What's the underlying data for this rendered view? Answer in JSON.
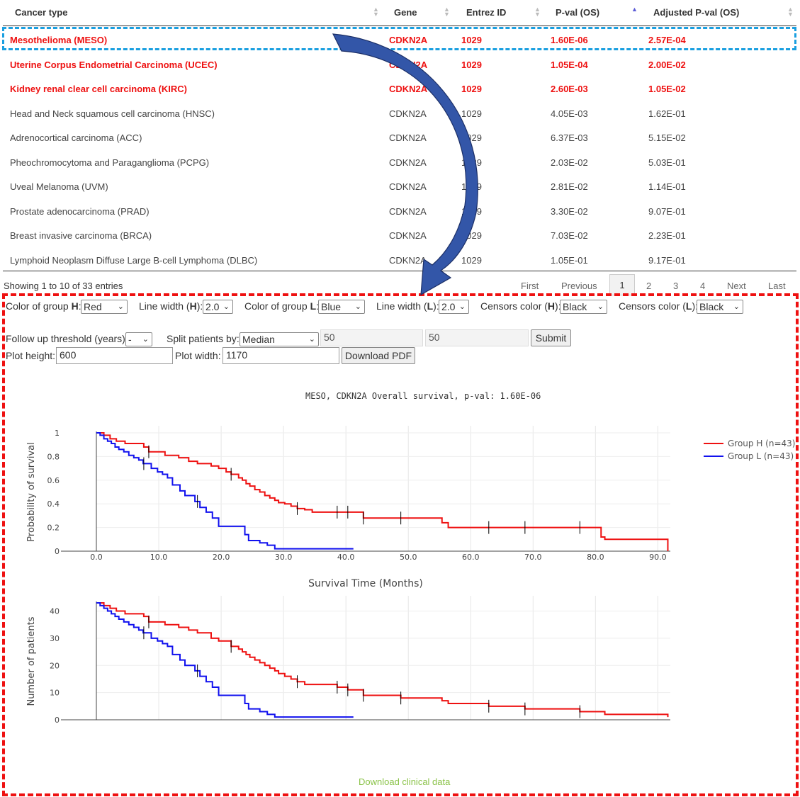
{
  "table": {
    "headers": [
      "Cancer type",
      "Gene",
      "Entrez ID",
      "P-val (OS)",
      "Adjusted P-val (OS)"
    ],
    "rows": [
      {
        "cancer": "Mesothelioma (MESO)",
        "gene": "CDKN2A",
        "entrez": "1029",
        "pval": "1.60E-06",
        "adj": "2.57E-04",
        "sig": true
      },
      {
        "cancer": "Uterine Corpus Endometrial Carcinoma (UCEC)",
        "gene": "CDKN2A",
        "entrez": "1029",
        "pval": "1.05E-04",
        "adj": "2.00E-02",
        "sig": true
      },
      {
        "cancer": "Kidney renal clear cell carcinoma (KIRC)",
        "gene": "CDKN2A",
        "entrez": "1029",
        "pval": "2.60E-03",
        "adj": "1.05E-02",
        "sig": true
      },
      {
        "cancer": "Head and Neck squamous cell carcinoma (HNSC)",
        "gene": "CDKN2A",
        "entrez": "1029",
        "pval": "4.05E-03",
        "adj": "1.62E-01",
        "sig": false
      },
      {
        "cancer": "Adrenocortical carcinoma (ACC)",
        "gene": "CDKN2A",
        "entrez": "1029",
        "pval": "6.37E-03",
        "adj": "5.15E-02",
        "sig": false
      },
      {
        "cancer": "Pheochromocytoma and Paraganglioma (PCPG)",
        "gene": "CDKN2A",
        "entrez": "1029",
        "pval": "2.03E-02",
        "adj": "5.03E-01",
        "sig": false
      },
      {
        "cancer": "Uveal Melanoma (UVM)",
        "gene": "CDKN2A",
        "entrez": "1029",
        "pval": "2.81E-02",
        "adj": "1.14E-01",
        "sig": false
      },
      {
        "cancer": "Prostate adenocarcinoma (PRAD)",
        "gene": "CDKN2A",
        "entrez": "1029",
        "pval": "3.30E-02",
        "adj": "9.07E-01",
        "sig": false
      },
      {
        "cancer": "Breast invasive carcinoma (BRCA)",
        "gene": "CDKN2A",
        "entrez": "1029",
        "pval": "7.03E-02",
        "adj": "2.23E-01",
        "sig": false
      },
      {
        "cancer": "Lymphoid Neoplasm Diffuse Large B-cell Lymphoma (DLBC)",
        "gene": "CDKN2A",
        "entrez": "1029",
        "pval": "1.05E-01",
        "adj": "9.17E-01",
        "sig": false
      }
    ],
    "info": "Showing 1 to 10 of 33 entries",
    "pager": {
      "first": "First",
      "previous": "Previous",
      "pages": [
        "1",
        "2",
        "3",
        "4"
      ],
      "current": "1",
      "next": "Next",
      "last": "Last"
    }
  },
  "controls": {
    "color_h_label": "Color of group ",
    "h_letter": "H",
    "l_letter": "L",
    "colon": ":",
    "color_h_value": "Red",
    "line_width_label": "Line width (",
    "paren_colon": "):",
    "line_width_h_value": "2.0",
    "color_l_label": "Color of group ",
    "color_l_value": "Blue",
    "line_width_l_value": "2.0",
    "censors_label": "Censors color (",
    "censors_h_value": "Black",
    "censors_l_value": "Black",
    "followup_label": "Follow up threshold (years):",
    "followup_value": "-",
    "split_label": "Split patients by:",
    "split_value": "Median",
    "split_lower": "50",
    "split_upper": "50",
    "submit_label": "Submit",
    "plot_height_label": "Plot height:",
    "plot_height_value": "600",
    "plot_width_label": "Plot width:",
    "plot_width_value": "1170",
    "download_pdf_label": "Download PDF"
  },
  "download_clinical_label": "Download clinical data",
  "colors": {
    "group_h": "#ee1111",
    "group_l": "#1111ee",
    "highlight_row_border": "#1a9fe0",
    "panel_border": "#ee1111",
    "arrow": "#3356a8",
    "link": "#8bc34a"
  },
  "chart_data": [
    {
      "type": "line",
      "step": true,
      "title": "MESO, CDKN2A Overall survival, p-val: 1.60E-06",
      "xlabel": "Survival Time (Months)",
      "ylabel": "Probability of survival",
      "xlim": [
        -5.5,
        92
      ],
      "ylim": [
        0,
        1
      ],
      "xticks": [
        "0.0",
        "10.0",
        "20.0",
        "30.0",
        "40.0",
        "50.0",
        "60.0",
        "70.0",
        "80.0",
        "90.0"
      ],
      "yticks": [
        "0",
        "0.2",
        "0.4",
        "0.6",
        "0.8",
        "1"
      ],
      "legend_position": "top-right",
      "series": [
        {
          "name": "Group H (n=43)",
          "color": "#ee1111",
          "x": [
            0,
            1.2,
            2.2,
            3.2,
            4.6,
            7.6,
            8.4,
            11,
            13.2,
            14.8,
            16.2,
            18.4,
            19.6,
            20.8,
            21.6,
            22.8,
            23.4,
            24,
            24.6,
            25.4,
            26.2,
            27,
            27.8,
            28.6,
            29.2,
            30.2,
            31.2,
            32.2,
            33.4,
            34.6,
            36.5,
            42.8,
            44.5,
            55.4,
            56.4,
            80.9,
            81.5,
            91.6
          ],
          "y": [
            1,
            0.98,
            0.95,
            0.93,
            0.91,
            0.88,
            0.84,
            0.81,
            0.79,
            0.76,
            0.74,
            0.72,
            0.7,
            0.67,
            0.65,
            0.62,
            0.6,
            0.57,
            0.55,
            0.52,
            0.5,
            0.47,
            0.45,
            0.43,
            0.41,
            0.4,
            0.38,
            0.36,
            0.35,
            0.33,
            0.33,
            0.28,
            0.28,
            0.24,
            0.2,
            0.12,
            0.1,
            0
          ],
          "censor_x": [
            8.4,
            21.6,
            32.2,
            38.6,
            40.3,
            42.8,
            48.8,
            62.9,
            68.7,
            77.5
          ]
        },
        {
          "name": "Group L (n=43)",
          "color": "#1111ee",
          "x": [
            0,
            0.6,
            1.2,
            1.8,
            2.4,
            3,
            3.6,
            4.4,
            5.2,
            6,
            6.8,
            7.5,
            8.8,
            9.8,
            10.6,
            11.4,
            12.2,
            13.4,
            14.2,
            15.8,
            16.6,
            17.6,
            18.6,
            19.6,
            23.8,
            24.4,
            26.2,
            27.4,
            28.6,
            29.6,
            41.2
          ],
          "y": [
            1,
            0.98,
            0.95,
            0.93,
            0.91,
            0.88,
            0.86,
            0.84,
            0.81,
            0.79,
            0.77,
            0.74,
            0.7,
            0.67,
            0.65,
            0.62,
            0.56,
            0.51,
            0.47,
            0.42,
            0.37,
            0.33,
            0.28,
            0.21,
            0.14,
            0.09,
            0.07,
            0.05,
            0.02,
            0.02,
            0.02
          ],
          "censor_x": [
            7.6,
            16.2
          ]
        }
      ]
    },
    {
      "type": "line",
      "step": true,
      "xlabel": "",
      "ylabel": "Number of patients",
      "xlim": [
        -5.5,
        92
      ],
      "ylim": [
        0,
        43
      ],
      "yticks": [
        "0",
        "10",
        "20",
        "30",
        "40"
      ],
      "series": [
        {
          "name": "Group H (n=43)",
          "color": "#ee1111",
          "x": [
            0,
            1.2,
            2.2,
            3.2,
            4.6,
            7.6,
            8.4,
            11,
            13.2,
            14.8,
            16.2,
            18.4,
            19.6,
            20.8,
            21.6,
            22.8,
            23.4,
            24,
            24.6,
            25.4,
            26.2,
            27,
            27.8,
            28.6,
            29.2,
            30.2,
            31.2,
            32.2,
            33.4,
            34.6,
            38.6,
            40.3,
            42.8,
            48.8,
            55.4,
            56.4,
            62.9,
            68.7,
            77.5,
            81.5,
            91.6
          ],
          "y": [
            43,
            42,
            41,
            40,
            39,
            38,
            36,
            35,
            34,
            33,
            32,
            30,
            29,
            29,
            27,
            26,
            25,
            24,
            23,
            22,
            21,
            20,
            19,
            18,
            17,
            16,
            15,
            14,
            13,
            13,
            12,
            11,
            9,
            8,
            7,
            6,
            5,
            4,
            3,
            2,
            1
          ],
          "censor_x": [
            8.4,
            21.6,
            32.2,
            38.6,
            40.3,
            42.8,
            48.8,
            62.9,
            68.7,
            77.5
          ]
        },
        {
          "name": "Group L (n=43)",
          "color": "#1111ee",
          "x": [
            0,
            0.6,
            1.2,
            1.8,
            2.4,
            3,
            3.6,
            4.4,
            5.2,
            6,
            6.8,
            7.5,
            8.8,
            9.8,
            10.6,
            11.4,
            12.2,
            13.4,
            14.2,
            15.8,
            16.6,
            17.6,
            18.6,
            19.6,
            23.8,
            24.4,
            26.2,
            27.4,
            28.6,
            29.6,
            41.2
          ],
          "y": [
            43,
            42,
            41,
            40,
            39,
            38,
            37,
            36,
            35,
            34,
            33,
            32,
            30,
            29,
            28,
            27,
            24,
            22,
            20,
            18,
            16,
            14,
            12,
            9,
            6,
            4,
            3,
            2,
            1,
            1,
            1
          ],
          "censor_x": [
            7.6,
            16.2
          ]
        }
      ]
    }
  ]
}
